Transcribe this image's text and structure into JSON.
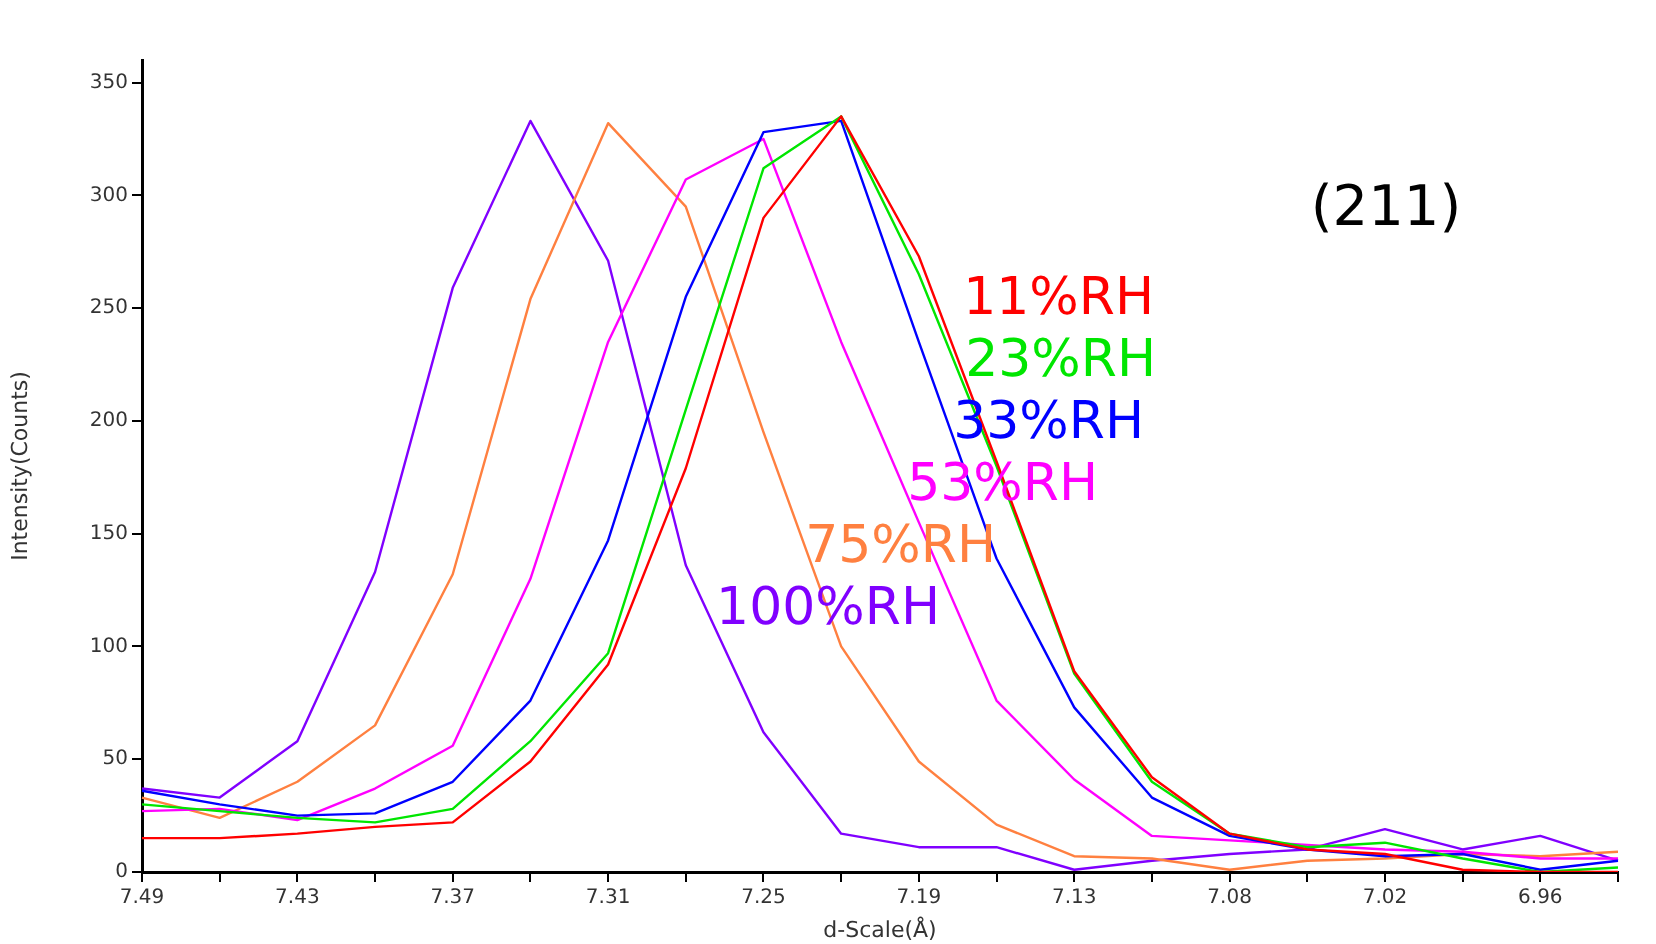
{
  "chart_data": {
    "type": "line",
    "xlabel": "d-Scale(Å)",
    "ylabel": "Intensity(Counts)",
    "annotations": [
      "(211)"
    ],
    "categories": [
      "7.49",
      null,
      "7.43",
      null,
      "7.37",
      null,
      "7.31",
      null,
      "7.25",
      null,
      "7.19",
      null,
      "7.13",
      null,
      "7.08",
      null,
      "7.02",
      null,
      "6.96",
      null
    ],
    "ylim": [
      0,
      360
    ],
    "yticks": [
      0,
      50,
      100,
      150,
      200,
      250,
      300,
      350
    ],
    "grid": false,
    "legend": false,
    "marker": "none",
    "line_style": "solid",
    "series": [
      {
        "name": "11%RH",
        "color": "#ff0000",
        "values": [
          15,
          15,
          17,
          20,
          22,
          49,
          92,
          179,
          290,
          335,
          273,
          182,
          89,
          42,
          17,
          10,
          8,
          1,
          0,
          0
        ]
      },
      {
        "name": "23%RH",
        "color": "#00e600",
        "values": [
          30,
          27,
          24,
          22,
          28,
          58,
          97,
          205,
          312,
          335,
          265,
          180,
          88,
          40,
          17,
          11,
          13,
          6,
          0,
          2
        ]
      },
      {
        "name": "33%RH",
        "color": "#0000ff",
        "values": [
          36,
          30,
          25,
          26,
          40,
          76,
          147,
          255,
          328,
          333,
          235,
          139,
          73,
          33,
          16,
          10,
          7,
          8,
          1,
          5
        ]
      },
      {
        "name": "53%RH",
        "color": "#ff00ff",
        "values": [
          27,
          28,
          23,
          37,
          56,
          130,
          235,
          307,
          325,
          235,
          155,
          76,
          41,
          16,
          14,
          12,
          10,
          9,
          6,
          6
        ]
      },
      {
        "name": "75%RH",
        "color": "#ff8040",
        "values": [
          33,
          24,
          40,
          65,
          132,
          254,
          332,
          295,
          195,
          100,
          49,
          21,
          7,
          6,
          1,
          5,
          6,
          8,
          7,
          9
        ]
      },
      {
        "name": "100%RH",
        "color": "#8000ff",
        "values": [
          37,
          33,
          58,
          133,
          259,
          333,
          271,
          136,
          62,
          17,
          11,
          11,
          1,
          5,
          8,
          10,
          19,
          10,
          16,
          5
        ]
      }
    ]
  }
}
